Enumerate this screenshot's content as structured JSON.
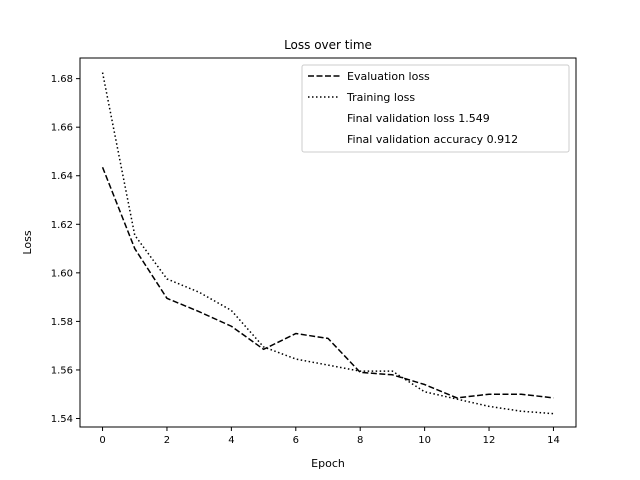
{
  "chart_data": {
    "type": "line",
    "title": "Loss over time",
    "xlabel": "Epoch",
    "ylabel": "Loss",
    "xlim": [
      -0.7,
      14.7
    ],
    "ylim": [
      1.5365,
      1.6885
    ],
    "xticks": [
      0,
      2,
      4,
      6,
      8,
      10,
      12,
      14
    ],
    "yticks": [
      1.54,
      1.56,
      1.58,
      1.6,
      1.62,
      1.64,
      1.66,
      1.68
    ],
    "grid": false,
    "legend_position": "top-right",
    "series": [
      {
        "name": "Evaluation loss",
        "style": "dashed",
        "color": "#000000",
        "x": [
          0,
          1,
          2,
          3,
          4,
          5,
          6,
          7,
          8,
          9,
          10,
          11,
          12,
          13,
          14
        ],
        "y": [
          1.6435,
          1.61,
          1.5895,
          1.584,
          1.578,
          1.5685,
          1.575,
          1.573,
          1.559,
          1.558,
          1.554,
          1.5485,
          1.55,
          1.55,
          1.5485
        ]
      },
      {
        "name": "Training loss",
        "style": "dotted",
        "color": "#000000",
        "x": [
          0,
          1,
          2,
          3,
          4,
          5,
          6,
          7,
          8,
          9,
          10,
          11,
          12,
          13,
          14
        ],
        "y": [
          1.6825,
          1.6155,
          1.5975,
          1.592,
          1.5845,
          1.5695,
          1.5645,
          1.562,
          1.5595,
          1.5595,
          1.551,
          1.548,
          1.545,
          1.543,
          1.542
        ]
      }
    ],
    "legend_extra": [
      "Final validation loss 1.549",
      "Final validation accuracy 0.912"
    ]
  }
}
